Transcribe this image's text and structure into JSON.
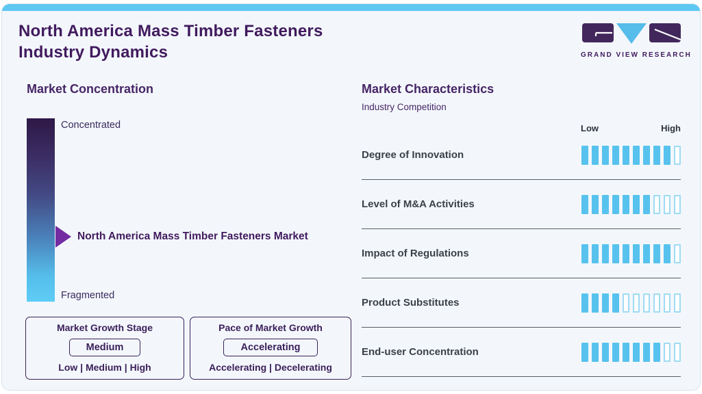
{
  "colors": {
    "brand_purple": "#411a5e",
    "accent_blue": "#5ec8f2",
    "bar_blue": "#57c2ee"
  },
  "header": {
    "title_line1": "North America Mass Timber Fasteners",
    "title_line2": "Industry Dynamics"
  },
  "logo": {
    "text": "GRAND VIEW RESEARCH"
  },
  "market_concentration": {
    "heading": "Market Concentration",
    "top_label": "Concentrated",
    "bottom_label": "Fragmented",
    "pointer_label": "North America Mass Timber Fasteners Market"
  },
  "growth_stage_box": {
    "title": "Market Growth Stage",
    "value": "Medium",
    "options": "Low | Medium | High"
  },
  "pace_box": {
    "title": "Pace of Market Growth",
    "value": "Accelerating",
    "options": "Accelerating | Decelerating"
  },
  "market_characteristics": {
    "heading": "Market Characteristics",
    "subtitle": "Industry Competition",
    "scale_low": "Low",
    "scale_high": "High",
    "rows": [
      {
        "label": "Degree of Innovation",
        "filled": 9,
        "total": 10
      },
      {
        "label": "Level of M&A Activities",
        "filled": 7,
        "total": 10
      },
      {
        "label": "Impact of Regulations",
        "filled": 9,
        "total": 10
      },
      {
        "label": "Product Substitutes",
        "filled": 4,
        "total": 10
      },
      {
        "label": "End-user Concentration",
        "filled": 8,
        "total": 10
      }
    ]
  }
}
